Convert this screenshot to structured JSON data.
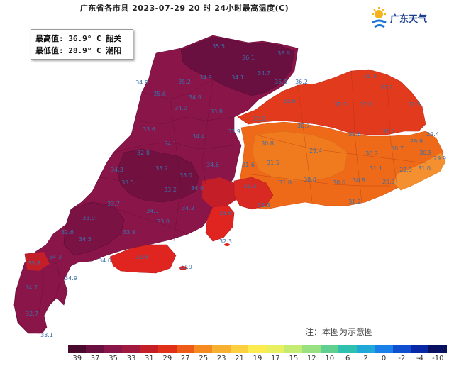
{
  "title": "广东省各市县 2023-07-29 20 时 24小时最高温度(C)",
  "logo": {
    "name": "广东天气",
    "icon": "sun-cloud-logo-icon"
  },
  "stats": {
    "max_label": "最高值:",
    "max_value": "36.9° C",
    "max_place": "韶关",
    "min_label": "最低值:",
    "min_value": "28.9° C",
    "min_place": "潮阳"
  },
  "note": "注：本图为示意图",
  "legend": {
    "labels": [
      "39",
      "37",
      "35",
      "33",
      "31",
      "29",
      "27",
      "25",
      "23",
      "21",
      "19",
      "17",
      "15",
      "12",
      "10",
      "6",
      "2",
      "0",
      "-2",
      "-4",
      "-10"
    ],
    "colors": [
      "#4a0a2e",
      "#6a1040",
      "#8a1548",
      "#a01a40",
      "#c41e28",
      "#e03018",
      "#ee5a18",
      "#f48a20",
      "#f8b030",
      "#fcd040",
      "#fcec50",
      "#e8f060",
      "#c4ec70",
      "#98e080",
      "#60d090",
      "#30c0b0",
      "#20a8d8",
      "#1880e8",
      "#1050d0",
      "#0828a8",
      "#081060"
    ]
  },
  "map_labels": [
    {
      "v": "35.5"
    },
    {
      "v": "36.1"
    },
    {
      "v": "36.9"
    },
    {
      "v": "34.8"
    },
    {
      "v": "35.6"
    },
    {
      "v": "35.2"
    },
    {
      "v": "34.9"
    },
    {
      "v": "34.1"
    },
    {
      "v": "34.7"
    },
    {
      "v": "35.8"
    },
    {
      "v": "36.2"
    },
    {
      "v": "34.9"
    },
    {
      "v": "33.8"
    },
    {
      "v": "34.0"
    },
    {
      "v": "32.0"
    },
    {
      "v": "31.6"
    },
    {
      "v": "33.9"
    },
    {
      "v": "34.4"
    },
    {
      "v": "34.1"
    },
    {
      "v": "33.6"
    },
    {
      "v": "30.7"
    },
    {
      "v": "31.5"
    },
    {
      "v": "32.2"
    },
    {
      "v": "32.5"
    },
    {
      "v": "31.3"
    },
    {
      "v": "32.8"
    },
    {
      "v": "31.2"
    },
    {
      "v": "30.8"
    },
    {
      "v": "29.4"
    },
    {
      "v": "31.6"
    },
    {
      "v": "31.5"
    },
    {
      "v": "30.2"
    },
    {
      "v": "30.7"
    },
    {
      "v": "29.9"
    },
    {
      "v": "29.4"
    },
    {
      "v": "30.5"
    },
    {
      "v": "29.9"
    },
    {
      "v": "31.0"
    },
    {
      "v": "28.9"
    },
    {
      "v": "29.3"
    },
    {
      "v": "31.1"
    },
    {
      "v": "31.6"
    },
    {
      "v": "31.8"
    },
    {
      "v": "30.0"
    },
    {
      "v": "30.6"
    },
    {
      "v": "30.8"
    },
    {
      "v": "31.2"
    },
    {
      "v": "32.1"
    },
    {
      "v": "33.3"
    },
    {
      "v": "33.6"
    },
    {
      "v": "34.6"
    },
    {
      "v": "35.0"
    },
    {
      "v": "33.2"
    },
    {
      "v": "32.8"
    },
    {
      "v": "32.3"
    },
    {
      "v": "32.9"
    },
    {
      "v": "34.1"
    },
    {
      "v": "33.5"
    },
    {
      "v": "33.7"
    },
    {
      "v": "33.9"
    },
    {
      "v": "32.6"
    },
    {
      "v": "34.3"
    },
    {
      "v": "33.8"
    },
    {
      "v": "34.7"
    },
    {
      "v": "32.7"
    },
    {
      "v": "33.1"
    },
    {
      "v": "34.5"
    },
    {
      "v": "33.9"
    },
    {
      "v": "34.0"
    },
    {
      "v": "33.4"
    },
    {
      "v": "33.0"
    },
    {
      "v": "34.2"
    },
    {
      "v": "34.6"
    },
    {
      "v": "33.2"
    },
    {
      "v": "34.9"
    },
    {
      "v": "34.3"
    }
  ]
}
